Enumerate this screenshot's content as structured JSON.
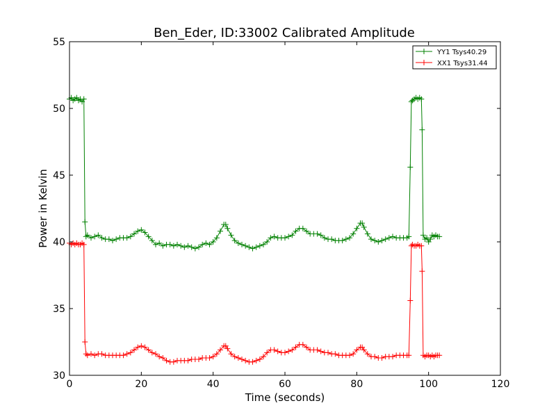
{
  "chart_data": {
    "type": "line",
    "title": "Ben_Eder, ID:33002 Calibrated Amplitude",
    "xlabel": "Time (seconds)",
    "ylabel": "Power in Kelvin",
    "xlim": [
      0,
      120
    ],
    "ylim": [
      30,
      55
    ],
    "xticks": [
      0,
      20,
      40,
      60,
      80,
      100,
      120
    ],
    "yticks": [
      30,
      35,
      40,
      45,
      50,
      55
    ],
    "grid": false,
    "legend_position": "top-right",
    "series": [
      {
        "name": "YY1 Tsys40.29",
        "color": "#008000",
        "marker": "+",
        "points": [
          [
            0.0,
            50.7
          ],
          [
            0.5,
            50.8
          ],
          [
            1.0,
            50.6
          ],
          [
            1.5,
            50.7
          ],
          [
            2.0,
            50.8
          ],
          [
            2.5,
            50.6
          ],
          [
            3.0,
            50.7
          ],
          [
            3.5,
            50.5
          ],
          [
            4.0,
            50.7
          ],
          [
            4.3,
            41.5
          ],
          [
            4.6,
            40.4
          ],
          [
            5.0,
            40.5
          ],
          [
            6.0,
            40.3
          ],
          [
            7.0,
            40.4
          ],
          [
            8.0,
            40.5
          ],
          [
            9.0,
            40.3
          ],
          [
            10.0,
            40.2
          ],
          [
            11.0,
            40.2
          ],
          [
            12.0,
            40.1
          ],
          [
            13.0,
            40.2
          ],
          [
            14.0,
            40.3
          ],
          [
            15.0,
            40.3
          ],
          [
            16.0,
            40.3
          ],
          [
            17.0,
            40.4
          ],
          [
            18.0,
            40.6
          ],
          [
            19.0,
            40.8
          ],
          [
            20.0,
            40.9
          ],
          [
            21.0,
            40.7
          ],
          [
            22.0,
            40.4
          ],
          [
            23.0,
            40.1
          ],
          [
            24.0,
            39.8
          ],
          [
            25.0,
            39.9
          ],
          [
            26.0,
            39.7
          ],
          [
            27.0,
            39.8
          ],
          [
            28.0,
            39.8
          ],
          [
            29.0,
            39.7
          ],
          [
            30.0,
            39.8
          ],
          [
            31.0,
            39.7
          ],
          [
            32.0,
            39.6
          ],
          [
            33.0,
            39.7
          ],
          [
            34.0,
            39.6
          ],
          [
            35.0,
            39.5
          ],
          [
            36.0,
            39.6
          ],
          [
            37.0,
            39.8
          ],
          [
            38.0,
            39.9
          ],
          [
            39.0,
            39.8
          ],
          [
            40.0,
            40.0
          ],
          [
            41.0,
            40.3
          ],
          [
            42.0,
            40.8
          ],
          [
            43.0,
            41.3
          ],
          [
            43.5,
            41.3
          ],
          [
            44.0,
            41.0
          ],
          [
            45.0,
            40.5
          ],
          [
            46.0,
            40.1
          ],
          [
            47.0,
            39.9
          ],
          [
            48.0,
            39.8
          ],
          [
            49.0,
            39.7
          ],
          [
            50.0,
            39.6
          ],
          [
            51.0,
            39.5
          ],
          [
            52.0,
            39.6
          ],
          [
            53.0,
            39.7
          ],
          [
            54.0,
            39.8
          ],
          [
            55.0,
            40.0
          ],
          [
            56.0,
            40.3
          ],
          [
            57.0,
            40.4
          ],
          [
            58.0,
            40.3
          ],
          [
            59.0,
            40.3
          ],
          [
            60.0,
            40.3
          ],
          [
            61.0,
            40.4
          ],
          [
            62.0,
            40.5
          ],
          [
            63.0,
            40.8
          ],
          [
            64.0,
            41.0
          ],
          [
            65.0,
            41.0
          ],
          [
            66.0,
            40.8
          ],
          [
            67.0,
            40.6
          ],
          [
            68.0,
            40.6
          ],
          [
            69.0,
            40.6
          ],
          [
            70.0,
            40.5
          ],
          [
            71.0,
            40.3
          ],
          [
            72.0,
            40.2
          ],
          [
            73.0,
            40.2
          ],
          [
            74.0,
            40.1
          ],
          [
            75.0,
            40.1
          ],
          [
            76.0,
            40.1
          ],
          [
            77.0,
            40.2
          ],
          [
            78.0,
            40.3
          ],
          [
            79.0,
            40.6
          ],
          [
            80.0,
            41.0
          ],
          [
            81.0,
            41.4
          ],
          [
            81.5,
            41.4
          ],
          [
            82.0,
            41.1
          ],
          [
            83.0,
            40.6
          ],
          [
            84.0,
            40.2
          ],
          [
            85.0,
            40.1
          ],
          [
            86.0,
            40.0
          ],
          [
            87.0,
            40.1
          ],
          [
            88.0,
            40.2
          ],
          [
            89.0,
            40.3
          ],
          [
            90.0,
            40.4
          ],
          [
            91.0,
            40.3
          ],
          [
            92.0,
            40.3
          ],
          [
            93.0,
            40.3
          ],
          [
            94.0,
            40.3
          ],
          [
            94.5,
            40.4
          ],
          [
            94.9,
            45.6
          ],
          [
            95.2,
            50.5
          ],
          [
            95.5,
            50.6
          ],
          [
            96.0,
            50.7
          ],
          [
            96.5,
            50.8
          ],
          [
            97.0,
            50.7
          ],
          [
            97.5,
            50.8
          ],
          [
            98.0,
            50.7
          ],
          [
            98.2,
            48.4
          ],
          [
            98.5,
            40.5
          ],
          [
            99.0,
            40.2
          ],
          [
            99.5,
            40.3
          ],
          [
            100.0,
            40.0
          ],
          [
            100.5,
            40.2
          ],
          [
            101.0,
            40.5
          ],
          [
            101.5,
            40.4
          ],
          [
            102.0,
            40.5
          ],
          [
            102.5,
            40.4
          ],
          [
            103.0,
            40.4
          ]
        ]
      },
      {
        "name": "XX1 Tsys31.44",
        "color": "#ff0000",
        "marker": "+",
        "points": [
          [
            0.0,
            39.9
          ],
          [
            0.5,
            39.8
          ],
          [
            1.0,
            39.9
          ],
          [
            1.5,
            39.8
          ],
          [
            2.0,
            39.9
          ],
          [
            2.5,
            39.8
          ],
          [
            3.0,
            39.8
          ],
          [
            3.5,
            39.9
          ],
          [
            4.0,
            39.8
          ],
          [
            4.3,
            32.5
          ],
          [
            4.6,
            31.6
          ],
          [
            5.0,
            31.5
          ],
          [
            6.0,
            31.6
          ],
          [
            7.0,
            31.5
          ],
          [
            8.0,
            31.6
          ],
          [
            9.0,
            31.6
          ],
          [
            10.0,
            31.5
          ],
          [
            11.0,
            31.5
          ],
          [
            12.0,
            31.5
          ],
          [
            13.0,
            31.5
          ],
          [
            14.0,
            31.5
          ],
          [
            15.0,
            31.5
          ],
          [
            16.0,
            31.6
          ],
          [
            17.0,
            31.7
          ],
          [
            18.0,
            31.9
          ],
          [
            19.0,
            32.1
          ],
          [
            20.0,
            32.2
          ],
          [
            21.0,
            32.1
          ],
          [
            22.0,
            31.9
          ],
          [
            23.0,
            31.7
          ],
          [
            24.0,
            31.6
          ],
          [
            25.0,
            31.4
          ],
          [
            26.0,
            31.3
          ],
          [
            27.0,
            31.1
          ],
          [
            28.0,
            31.0
          ],
          [
            29.0,
            31.0
          ],
          [
            30.0,
            31.1
          ],
          [
            31.0,
            31.1
          ],
          [
            32.0,
            31.1
          ],
          [
            33.0,
            31.1
          ],
          [
            34.0,
            31.2
          ],
          [
            35.0,
            31.2
          ],
          [
            36.0,
            31.2
          ],
          [
            37.0,
            31.3
          ],
          [
            38.0,
            31.3
          ],
          [
            39.0,
            31.3
          ],
          [
            40.0,
            31.4
          ],
          [
            41.0,
            31.6
          ],
          [
            42.0,
            31.9
          ],
          [
            43.0,
            32.2
          ],
          [
            43.5,
            32.2
          ],
          [
            44.0,
            32.0
          ],
          [
            45.0,
            31.6
          ],
          [
            46.0,
            31.4
          ],
          [
            47.0,
            31.3
          ],
          [
            48.0,
            31.2
          ],
          [
            49.0,
            31.1
          ],
          [
            50.0,
            31.0
          ],
          [
            51.0,
            31.0
          ],
          [
            52.0,
            31.1
          ],
          [
            53.0,
            31.2
          ],
          [
            54.0,
            31.4
          ],
          [
            55.0,
            31.7
          ],
          [
            56.0,
            31.9
          ],
          [
            57.0,
            31.9
          ],
          [
            58.0,
            31.8
          ],
          [
            59.0,
            31.7
          ],
          [
            60.0,
            31.7
          ],
          [
            61.0,
            31.8
          ],
          [
            62.0,
            31.9
          ],
          [
            63.0,
            32.1
          ],
          [
            64.0,
            32.3
          ],
          [
            65.0,
            32.3
          ],
          [
            66.0,
            32.1
          ],
          [
            67.0,
            31.9
          ],
          [
            68.0,
            31.9
          ],
          [
            69.0,
            31.9
          ],
          [
            70.0,
            31.8
          ],
          [
            71.0,
            31.7
          ],
          [
            72.0,
            31.7
          ],
          [
            73.0,
            31.6
          ],
          [
            74.0,
            31.6
          ],
          [
            75.0,
            31.5
          ],
          [
            76.0,
            31.5
          ],
          [
            77.0,
            31.5
          ],
          [
            78.0,
            31.5
          ],
          [
            79.0,
            31.6
          ],
          [
            80.0,
            31.9
          ],
          [
            81.0,
            32.1
          ],
          [
            81.5,
            32.1
          ],
          [
            82.0,
            31.9
          ],
          [
            83.0,
            31.6
          ],
          [
            84.0,
            31.4
          ],
          [
            85.0,
            31.4
          ],
          [
            86.0,
            31.3
          ],
          [
            87.0,
            31.3
          ],
          [
            88.0,
            31.4
          ],
          [
            89.0,
            31.4
          ],
          [
            90.0,
            31.4
          ],
          [
            91.0,
            31.5
          ],
          [
            92.0,
            31.5
          ],
          [
            93.0,
            31.5
          ],
          [
            94.0,
            31.5
          ],
          [
            94.5,
            31.5
          ],
          [
            94.9,
            35.6
          ],
          [
            95.2,
            39.7
          ],
          [
            95.5,
            39.8
          ],
          [
            96.0,
            39.7
          ],
          [
            96.5,
            39.7
          ],
          [
            97.0,
            39.8
          ],
          [
            97.5,
            39.7
          ],
          [
            98.0,
            39.7
          ],
          [
            98.2,
            37.8
          ],
          [
            98.5,
            31.5
          ],
          [
            99.0,
            31.4
          ],
          [
            99.5,
            31.5
          ],
          [
            100.0,
            31.5
          ],
          [
            100.5,
            31.4
          ],
          [
            101.0,
            31.5
          ],
          [
            101.5,
            31.4
          ],
          [
            102.0,
            31.5
          ],
          [
            102.5,
            31.5
          ],
          [
            103.0,
            31.5
          ]
        ]
      }
    ]
  }
}
